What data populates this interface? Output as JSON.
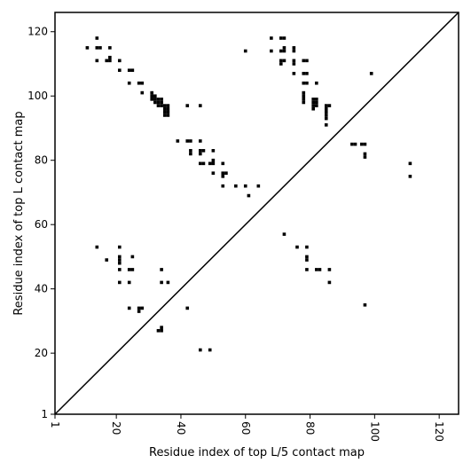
{
  "chart_data": {
    "type": "scatter",
    "title": "",
    "xlabel": "Residue index of top L/5 contact map",
    "ylabel": "Residue index of top L contact map",
    "xlim": [
      1,
      126
    ],
    "ylim": [
      1,
      126
    ],
    "xticks": [
      1,
      20,
      40,
      60,
      80,
      100,
      120
    ],
    "yticks": [
      1,
      20,
      40,
      60,
      80,
      100,
      120
    ],
    "xtick_rotation": -90,
    "grid": false,
    "legend": "none",
    "diagonal_line": true,
    "marker": "square",
    "marker_color": "#000000",
    "line_color": "#000000",
    "upper_triangle_points": [
      [
        14,
        118
      ],
      [
        11,
        115
      ],
      [
        14,
        115
      ],
      [
        15,
        115
      ],
      [
        18,
        115
      ],
      [
        14,
        111
      ],
      [
        17,
        111
      ],
      [
        18,
        111
      ],
      [
        18,
        112
      ],
      [
        21,
        111
      ],
      [
        21,
        108
      ],
      [
        24,
        108
      ],
      [
        25,
        108
      ],
      [
        24,
        104
      ],
      [
        27,
        104
      ],
      [
        28,
        104
      ],
      [
        28,
        101
      ],
      [
        31,
        101
      ],
      [
        31,
        100
      ],
      [
        32,
        100
      ],
      [
        31,
        99
      ],
      [
        32,
        99
      ],
      [
        33,
        99
      ],
      [
        34,
        99
      ],
      [
        32,
        98
      ],
      [
        33,
        98
      ],
      [
        34,
        98
      ],
      [
        33,
        97
      ],
      [
        34,
        97
      ],
      [
        35,
        97
      ],
      [
        36,
        97
      ],
      [
        35,
        96
      ],
      [
        36,
        96
      ],
      [
        35,
        95
      ],
      [
        36,
        95
      ],
      [
        35,
        94
      ],
      [
        36,
        94
      ],
      [
        42,
        97
      ],
      [
        46,
        97
      ],
      [
        39,
        86
      ],
      [
        42,
        86
      ],
      [
        43,
        86
      ],
      [
        46,
        86
      ],
      [
        43,
        83
      ],
      [
        43,
        82
      ],
      [
        46,
        83
      ],
      [
        47,
        83
      ],
      [
        46,
        82
      ],
      [
        50,
        83
      ],
      [
        46,
        79
      ],
      [
        47,
        79
      ],
      [
        49,
        79
      ],
      [
        50,
        79
      ],
      [
        50,
        80
      ],
      [
        53,
        79
      ],
      [
        50,
        76
      ],
      [
        53,
        76
      ],
      [
        54,
        76
      ],
      [
        53,
        75
      ],
      [
        53,
        72
      ],
      [
        57,
        72
      ],
      [
        60,
        72
      ],
      [
        64,
        72
      ],
      [
        61,
        69
      ],
      [
        60,
        114
      ],
      [
        68,
        118
      ],
      [
        71,
        118
      ],
      [
        72,
        118
      ],
      [
        68,
        114
      ],
      [
        71,
        114
      ],
      [
        72,
        114
      ],
      [
        72,
        115
      ],
      [
        75,
        115
      ],
      [
        75,
        114
      ],
      [
        71,
        111
      ],
      [
        72,
        111
      ],
      [
        71,
        110
      ],
      [
        75,
        111
      ],
      [
        75,
        110
      ],
      [
        78,
        111
      ],
      [
        79,
        111
      ],
      [
        75,
        107
      ],
      [
        78,
        107
      ],
      [
        79,
        107
      ],
      [
        78,
        104
      ],
      [
        79,
        104
      ],
      [
        82,
        104
      ],
      [
        78,
        101
      ],
      [
        78,
        100
      ],
      [
        78,
        99
      ],
      [
        78,
        98
      ],
      [
        81,
        99
      ],
      [
        82,
        99
      ],
      [
        81,
        98
      ],
      [
        82,
        98
      ],
      [
        81,
        97
      ],
      [
        82,
        97
      ],
      [
        81,
        96
      ],
      [
        85,
        97
      ],
      [
        86,
        97
      ],
      [
        85,
        96
      ],
      [
        85,
        95
      ],
      [
        85,
        94
      ],
      [
        85,
        93
      ],
      [
        85,
        91
      ],
      [
        99,
        107
      ],
      [
        93,
        85
      ],
      [
        94,
        85
      ],
      [
        96,
        85
      ],
      [
        97,
        85
      ],
      [
        97,
        82
      ],
      [
        97,
        81
      ],
      [
        111,
        79
      ],
      [
        111,
        75
      ]
    ],
    "lower_triangle_points": [
      [
        14,
        53
      ],
      [
        21,
        53
      ],
      [
        17,
        49
      ],
      [
        21,
        50
      ],
      [
        21,
        49
      ],
      [
        21,
        48
      ],
      [
        25,
        50
      ],
      [
        21,
        46
      ],
      [
        24,
        46
      ],
      [
        25,
        46
      ],
      [
        21,
        42
      ],
      [
        24,
        42
      ],
      [
        24,
        34
      ],
      [
        27,
        34
      ],
      [
        28,
        34
      ],
      [
        27,
        33
      ],
      [
        34,
        46
      ],
      [
        34,
        42
      ],
      [
        36,
        42
      ],
      [
        33,
        27
      ],
      [
        34,
        27
      ],
      [
        34,
        28
      ],
      [
        42,
        34
      ],
      [
        46,
        21
      ],
      [
        49,
        21
      ],
      [
        72,
        57
      ],
      [
        76,
        53
      ],
      [
        79,
        53
      ],
      [
        79,
        50
      ],
      [
        79,
        49
      ],
      [
        79,
        46
      ],
      [
        82,
        46
      ],
      [
        83,
        46
      ],
      [
        86,
        46
      ],
      [
        86,
        42
      ],
      [
        97,
        35
      ]
    ]
  }
}
